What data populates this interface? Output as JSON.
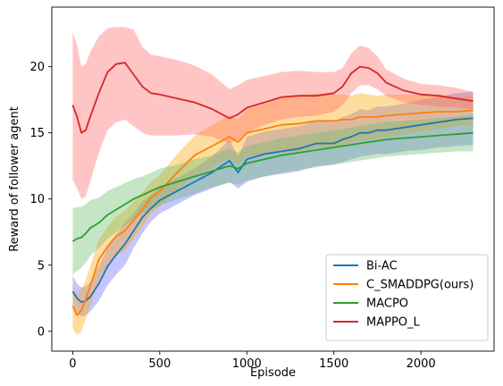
{
  "chart_data": {
    "type": "line",
    "title": "",
    "xlabel": "Episode",
    "ylabel": "Reward of follower agent",
    "xlim": [
      -120,
      2420
    ],
    "ylim": [
      -1.5,
      24.5
    ],
    "xticks": [
      0,
      500,
      1000,
      1500,
      2000
    ],
    "yticks": [
      0,
      5,
      10,
      15,
      20
    ],
    "grid": false,
    "legend_position": "lower-right",
    "x": [
      0,
      25,
      50,
      75,
      100,
      150,
      200,
      250,
      300,
      350,
      400,
      450,
      500,
      600,
      700,
      800,
      900,
      950,
      1000,
      1100,
      1200,
      1300,
      1400,
      1500,
      1550,
      1600,
      1650,
      1700,
      1750,
      1800,
      1900,
      2000,
      2100,
      2200,
      2300
    ],
    "series": [
      {
        "name": "Bi-AC",
        "color": "#1f77b4",
        "band_color": "#6666ff",
        "values": [
          3.0,
          2.5,
          2.2,
          2.3,
          2.6,
          3.6,
          4.9,
          5.8,
          6.6,
          7.6,
          8.6,
          9.3,
          9.9,
          10.6,
          11.3,
          12.0,
          12.9,
          12.0,
          13.0,
          13.4,
          13.6,
          13.8,
          14.2,
          14.2,
          14.5,
          14.7,
          15.0,
          15.0,
          15.2,
          15.2,
          15.4,
          15.6,
          15.8,
          16.0,
          16.1
        ],
        "lower": [
          1.8,
          1.4,
          1.1,
          1.2,
          1.5,
          2.3,
          3.5,
          4.3,
          5.0,
          6.3,
          7.4,
          8.3,
          8.9,
          9.6,
          10.3,
          10.8,
          11.3,
          10.8,
          11.3,
          11.7,
          11.9,
          12.1,
          12.5,
          12.6,
          12.8,
          13.0,
          13.2,
          13.3,
          13.4,
          13.4,
          13.6,
          13.7,
          13.9,
          14.0,
          14.1
        ],
        "upper": [
          4.2,
          3.6,
          3.3,
          3.4,
          3.7,
          4.9,
          6.3,
          7.3,
          8.2,
          8.9,
          9.8,
          10.3,
          10.9,
          11.6,
          12.3,
          13.2,
          14.5,
          13.2,
          14.7,
          15.1,
          15.3,
          15.5,
          15.9,
          15.8,
          16.2,
          16.4,
          16.8,
          16.7,
          17.0,
          17.0,
          17.2,
          17.5,
          17.7,
          18.0,
          18.1
        ]
      },
      {
        "name": "C_SMADDPG(ours)",
        "color": "#ff7f0e",
        "band_color": "#ffa500",
        "values": [
          1.9,
          1.2,
          1.6,
          2.4,
          3.4,
          5.4,
          6.4,
          7.2,
          7.6,
          8.4,
          9.2,
          10.1,
          10.6,
          12.0,
          13.3,
          14.0,
          14.7,
          14.3,
          15.0,
          15.3,
          15.6,
          15.7,
          15.9,
          15.9,
          16.0,
          16.0,
          16.2,
          16.2,
          16.2,
          16.3,
          16.4,
          16.5,
          16.6,
          16.6,
          16.7
        ],
        "lower": [
          0.2,
          -0.3,
          0.0,
          0.9,
          1.9,
          3.9,
          4.9,
          5.7,
          6.1,
          7.0,
          7.9,
          8.9,
          9.4,
          10.7,
          11.8,
          12.4,
          13.1,
          12.6,
          13.2,
          13.4,
          13.5,
          13.6,
          13.9,
          13.9,
          14.1,
          14.2,
          14.4,
          14.5,
          14.6,
          14.7,
          14.9,
          15.1,
          15.3,
          15.5,
          15.6
        ],
        "upper": [
          3.6,
          2.7,
          3.2,
          3.9,
          4.9,
          6.9,
          7.9,
          8.7,
          9.1,
          9.8,
          10.5,
          11.3,
          11.8,
          13.4,
          14.8,
          15.6,
          16.3,
          16.0,
          16.8,
          17.2,
          17.7,
          17.8,
          18.0,
          17.9,
          17.9,
          17.8,
          18.0,
          17.9,
          17.8,
          17.9,
          17.9,
          17.9,
          17.9,
          17.7,
          17.8
        ]
      },
      {
        "name": "MACPO",
        "color": "#2ca02c",
        "band_color": "#66bb66",
        "values": [
          6.8,
          7.0,
          7.1,
          7.4,
          7.8,
          8.2,
          8.8,
          9.2,
          9.6,
          10.0,
          10.3,
          10.6,
          10.9,
          11.3,
          11.7,
          12.1,
          12.5,
          12.3,
          12.7,
          13.0,
          13.3,
          13.5,
          13.7,
          13.9,
          14.0,
          14.1,
          14.2,
          14.3,
          14.4,
          14.5,
          14.6,
          14.7,
          14.8,
          14.9,
          15.0
        ],
        "lower": [
          4.3,
          4.6,
          4.8,
          5.2,
          5.7,
          6.3,
          7.0,
          7.5,
          8.0,
          8.5,
          8.9,
          9.2,
          9.5,
          10.0,
          10.4,
          10.9,
          11.2,
          11.1,
          11.4,
          11.7,
          12.0,
          12.2,
          12.4,
          12.6,
          12.7,
          12.8,
          12.9,
          13.0,
          13.1,
          13.2,
          13.3,
          13.4,
          13.5,
          13.6,
          13.6
        ],
        "upper": [
          9.3,
          9.4,
          9.4,
          9.6,
          9.9,
          10.1,
          10.6,
          10.9,
          11.2,
          11.5,
          11.7,
          12.0,
          12.3,
          12.6,
          13.0,
          13.3,
          13.8,
          13.5,
          14.0,
          14.3,
          14.6,
          14.8,
          15.0,
          15.2,
          15.3,
          15.4,
          15.5,
          15.6,
          15.7,
          15.8,
          15.9,
          16.0,
          16.1,
          16.2,
          16.4
        ]
      },
      {
        "name": "MAPPO_L",
        "color": "#d62728",
        "band_color": "#ff6666",
        "values": [
          17.1,
          16.2,
          15.0,
          15.2,
          16.2,
          18.0,
          19.6,
          20.2,
          20.3,
          19.4,
          18.5,
          18.0,
          17.9,
          17.6,
          17.3,
          16.8,
          16.1,
          16.4,
          16.9,
          17.3,
          17.7,
          17.8,
          17.8,
          18.0,
          18.5,
          19.5,
          20.0,
          19.9,
          19.5,
          18.8,
          18.2,
          17.9,
          17.8,
          17.6,
          17.4
        ],
        "lower": [
          11.5,
          10.8,
          10.0,
          10.2,
          11.3,
          13.5,
          15.2,
          15.8,
          16.0,
          15.5,
          15.0,
          14.8,
          14.8,
          14.8,
          14.9,
          14.7,
          14.2,
          14.5,
          15.0,
          15.6,
          16.0,
          16.2,
          16.3,
          16.6,
          17.1,
          18.0,
          18.6,
          18.6,
          18.3,
          17.8,
          17.3,
          17.1,
          17.0,
          16.9,
          16.8
        ],
        "upper": [
          22.6,
          21.6,
          20.0,
          20.2,
          21.1,
          22.3,
          22.9,
          23.0,
          23.0,
          22.8,
          21.5,
          20.9,
          20.8,
          20.5,
          20.1,
          19.4,
          18.3,
          18.6,
          19.0,
          19.3,
          19.6,
          19.7,
          19.6,
          19.6,
          19.9,
          21.0,
          21.6,
          21.4,
          20.8,
          19.8,
          19.1,
          18.7,
          18.6,
          18.4,
          18.1
        ]
      }
    ]
  }
}
